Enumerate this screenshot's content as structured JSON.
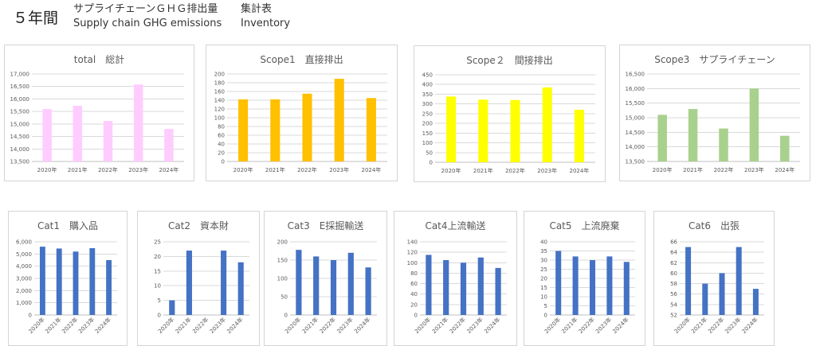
{
  "header": {
    "years_label": "５年間",
    "line1_title": "サプライチェーンＧＨＧ排出量",
    "line1_sub": "集計表",
    "line2_title": "Supply chain GHG emissions",
    "line2_sub": "Inventory"
  },
  "chart_data": [
    {
      "type": "bar",
      "title": "total　総計",
      "categories": [
        "2020年",
        "2021年",
        "2022年",
        "2023年",
        "2024年"
      ],
      "values": [
        15600,
        15730,
        15120,
        16580,
        14800
      ],
      "ylim": [
        13500,
        17000
      ],
      "ystep": 500,
      "color": "#ffccff"
    },
    {
      "type": "bar",
      "title": "Scope1　直接排出",
      "categories": [
        "2020年",
        "2021年",
        "2022年",
        "2023年",
        "2024年"
      ],
      "values": [
        142,
        142,
        155,
        189,
        145
      ],
      "ylim": [
        0,
        200
      ],
      "ystep": 20,
      "color": "#ffc000"
    },
    {
      "type": "bar",
      "title": "Scope２　間接排出",
      "categories": [
        "2020年",
        "2021年",
        "2022年",
        "2023年",
        "2024年"
      ],
      "values": [
        338,
        322,
        320,
        385,
        270
      ],
      "ylim": [
        0,
        450
      ],
      "ystep": 50,
      "color": "#ffff00"
    },
    {
      "type": "bar",
      "title": "Scope3　サプライチェーン",
      "categories": [
        "2020年",
        "2021年",
        "2022年",
        "2023年",
        "2024年"
      ],
      "values": [
        15100,
        15300,
        14630,
        16000,
        14380
      ],
      "ylim": [
        13500,
        16500
      ],
      "ystep": 500,
      "color": "#a9d18e"
    },
    {
      "type": "bar",
      "title": "Cat1　購入品",
      "categories": [
        "2020年",
        "2021年",
        "2022年",
        "2023年",
        "2024年"
      ],
      "values": [
        5600,
        5450,
        5200,
        5480,
        4500
      ],
      "ylim": [
        0,
        6000
      ],
      "ystep": 1000,
      "color": "#4472c4"
    },
    {
      "type": "bar",
      "title": "Cat2　資本財",
      "categories": [
        "2020年",
        "2021年",
        "2022年",
        "2023年",
        "2024年"
      ],
      "values": [
        5,
        22,
        0,
        22,
        18
      ],
      "ylim": [
        0,
        25
      ],
      "ystep": 5,
      "color": "#4472c4"
    },
    {
      "type": "bar",
      "title": "Cat3　E採掘輸送",
      "categories": [
        "2020年",
        "2021年",
        "2022年",
        "2023年",
        "2024年"
      ],
      "values": [
        178,
        160,
        150,
        170,
        130
      ],
      "ylim": [
        0,
        200
      ],
      "ystep": 50,
      "color": "#4472c4"
    },
    {
      "type": "bar",
      "title": "Cat4上流輸送",
      "categories": [
        "2020年",
        "2021年",
        "2022年",
        "2023年",
        "2024年"
      ],
      "values": [
        115,
        105,
        100,
        110,
        90
      ],
      "ylim": [
        0,
        140
      ],
      "ystep": 20,
      "color": "#4472c4"
    },
    {
      "type": "bar",
      "title": "Cat5　上流廃棄",
      "categories": [
        "2020年",
        "2021年",
        "2022年",
        "2023年",
        "2024年"
      ],
      "values": [
        35,
        32,
        30,
        32,
        29
      ],
      "ylim": [
        0,
        40
      ],
      "ystep": 5,
      "color": "#4472c4"
    },
    {
      "type": "bar",
      "title": "Cat6　出張",
      "categories": [
        "2020年",
        "2021年",
        "2022年",
        "2023年",
        "2024年"
      ],
      "values": [
        65,
        58,
        60,
        65,
        57
      ],
      "ylim": [
        52,
        66
      ],
      "ystep": 2,
      "color": "#4472c4"
    }
  ]
}
